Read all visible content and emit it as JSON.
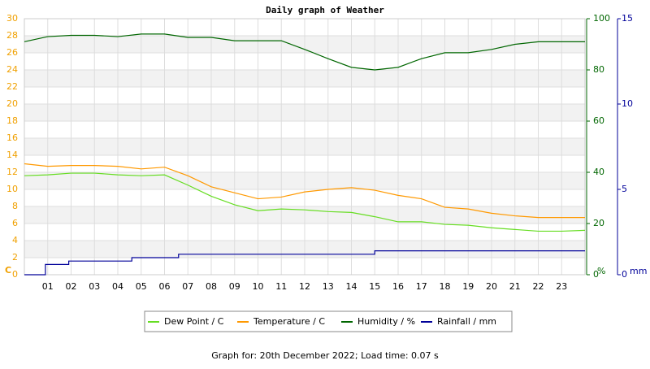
{
  "chart_data": {
    "type": "line",
    "title": "Daily graph of Weather",
    "footer": "Graph for: 20th December 2022; Load time: 0.07 s",
    "y_unit": "C",
    "y2_unit": "%",
    "y3_unit": "mm",
    "xlim": [
      0,
      24
    ],
    "xticks": [
      {
        "value": 1,
        "label": "01"
      },
      {
        "value": 2,
        "label": "02"
      },
      {
        "value": 3,
        "label": "03"
      },
      {
        "value": 4,
        "label": "04"
      },
      {
        "value": 5,
        "label": "05"
      },
      {
        "value": 6,
        "label": "06"
      },
      {
        "value": 7,
        "label": "07"
      },
      {
        "value": 8,
        "label": "08"
      },
      {
        "value": 9,
        "label": "09"
      },
      10,
      11,
      12,
      13,
      14,
      15,
      16,
      17,
      18,
      19,
      20,
      21,
      22,
      23
    ],
    "ylim": [
      0,
      30
    ],
    "yticks": [
      0,
      2,
      4,
      6,
      8,
      10,
      12,
      14,
      16,
      18,
      20,
      22,
      24,
      26,
      28,
      30
    ],
    "ycolor": "#f0a000",
    "y2lim": [
      0,
      100
    ],
    "y2ticks": [
      0,
      20,
      40,
      60,
      80,
      100
    ],
    "y2color": "#006600",
    "y3lim": [
      0,
      15
    ],
    "y3ticks": [
      0,
      5,
      10,
      15
    ],
    "y3color": "#000099",
    "grid": true,
    "x": [
      0,
      1,
      2,
      3,
      4,
      5,
      6,
      7,
      8,
      9,
      10,
      11,
      12,
      13,
      14,
      15,
      16,
      17,
      18,
      19,
      20,
      21,
      22,
      23,
      24
    ],
    "series": [
      {
        "name": "Dew Point / C",
        "color": "#66dd22",
        "axis": "y",
        "values": [
          11.6,
          11.7,
          11.9,
          11.9,
          11.7,
          11.6,
          11.7,
          10.5,
          9.2,
          8.2,
          7.5,
          7.7,
          7.6,
          7.4,
          7.3,
          6.8,
          6.2,
          6.2,
          5.9,
          5.8,
          5.5,
          5.3,
          5.1,
          5.1,
          5.2
        ]
      },
      {
        "name": "Temperature / C",
        "color": "#ff9900",
        "axis": "y",
        "values": [
          13.0,
          12.7,
          12.8,
          12.8,
          12.7,
          12.4,
          12.6,
          11.6,
          10.3,
          9.6,
          8.9,
          9.1,
          9.7,
          10.0,
          10.2,
          9.9,
          9.3,
          8.9,
          7.9,
          7.7,
          7.2,
          6.9,
          6.7,
          6.7,
          6.7
        ]
      },
      {
        "name": "Humidity / %",
        "color": "#006600",
        "axis": "y2",
        "values": [
          91,
          93,
          93.5,
          93.5,
          93,
          94,
          94,
          92.7,
          92.7,
          91.4,
          91.4,
          91.4,
          88,
          84.4,
          81,
          80,
          81,
          84.4,
          86.7,
          86.7,
          88,
          90,
          91,
          91,
          91
        ]
      },
      {
        "name": "Rainfall / mm",
        "color": "#000099",
        "axis": "y3",
        "step": true,
        "x": [
          0,
          0.9,
          1.9,
          4.6,
          6.6,
          15,
          24
        ],
        "values": [
          0,
          0.6,
          0.8,
          1.0,
          1.2,
          1.4,
          1.4
        ]
      }
    ]
  }
}
